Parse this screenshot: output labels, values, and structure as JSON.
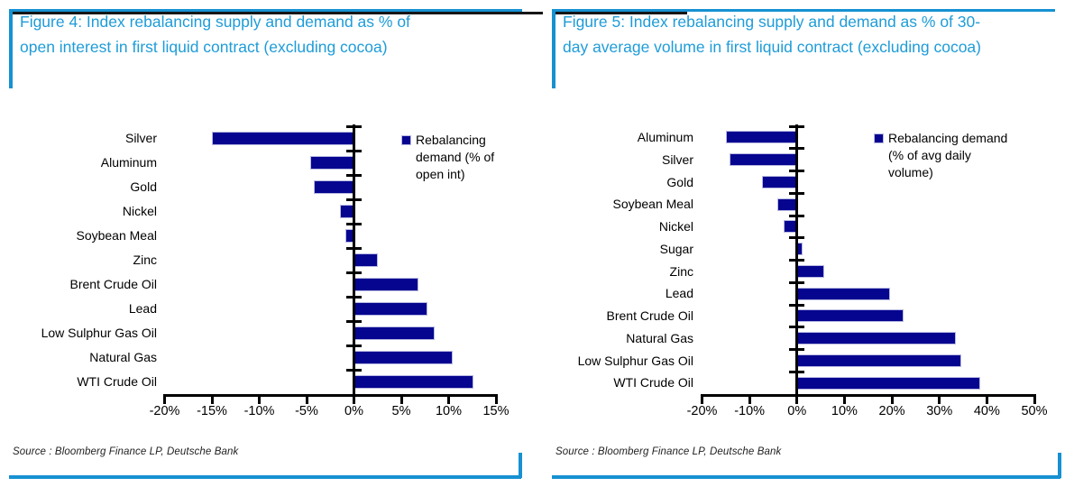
{
  "colors": {
    "accent_blue": "#1691d2",
    "title_blue": "#1e9cd8",
    "bar_navy": "#05058f",
    "bar_border": "#b9b9e2",
    "rule_black": "#161616",
    "axis_black": "#000000"
  },
  "figures": [
    {
      "title": "Figure 4: Index rebalancing supply and demand as % of open interest in first liquid contract (excluding cocoa)",
      "source": "Source : Bloomberg Finance LP, Deutsche Bank",
      "legend_lines": [
        "Rebalancing",
        "demand (% of",
        "open int)"
      ],
      "chart_data": {
        "type": "bar",
        "orientation": "horizontal",
        "title": "Index rebalancing supply and demand as % of open interest in first liquid contract (excluding cocoa)",
        "legend": "Rebalancing demand (% of open int)",
        "legend_position": "top-right",
        "unit": "%",
        "grid": false,
        "xlim": [
          -20,
          15
        ],
        "xticks": [
          -20,
          -15,
          -10,
          -5,
          0,
          5,
          10,
          15
        ],
        "xtick_labels": [
          "-20%",
          "-15%",
          "-10%",
          "-5%",
          "0%",
          "5%",
          "10%",
          "15%"
        ],
        "categories": [
          "Silver",
          "Aluminum",
          "Gold",
          "Nickel",
          "Soybean Meal",
          "Zinc",
          "Brent Crude Oil",
          "Lead",
          "Low Sulphur Gas Oil",
          "Natural Gas",
          "WTI Crude Oil"
        ],
        "values": [
          -15.0,
          -4.6,
          -4.2,
          -1.5,
          -0.9,
          2.5,
          6.8,
          7.8,
          8.5,
          10.4,
          12.6
        ],
        "bar_color": "#05058f"
      }
    },
    {
      "title": "Figure 5: Index rebalancing supply and demand as % of 30-day average volume in first liquid contract (excluding cocoa)",
      "source": "Source : Bloomberg Finance LP, Deutsche Bank",
      "legend_lines": [
        "Rebalancing demand",
        "(% of avg daily",
        "volume)"
      ],
      "chart_data": {
        "type": "bar",
        "orientation": "horizontal",
        "title": "Index rebalancing supply and demand as % of 30-day average volume in first liquid contract (excluding cocoa)",
        "legend": "Rebalancing demand (% of avg daily volume)",
        "legend_position": "top-right",
        "unit": "%",
        "grid": false,
        "xlim": [
          -20,
          50
        ],
        "xticks": [
          -20,
          -10,
          0,
          10,
          20,
          30,
          40,
          50
        ],
        "xtick_labels": [
          "-20%",
          "-10%",
          "0%",
          "10%",
          "20%",
          "30%",
          "40%",
          "50%"
        ],
        "categories": [
          "Aluminum",
          "Silver",
          "Gold",
          "Soybean Meal",
          "Nickel",
          "Sugar",
          "Zinc",
          "Lead",
          "Brent Crude Oil",
          "Natural Gas",
          "Low Sulphur Gas Oil",
          "WTI Crude Oil"
        ],
        "values": [
          -15.0,
          -14.2,
          -7.3,
          -4.1,
          -2.8,
          1.2,
          5.8,
          19.7,
          22.5,
          33.4,
          34.7,
          38.6
        ],
        "bar_color": "#05058f"
      }
    }
  ]
}
